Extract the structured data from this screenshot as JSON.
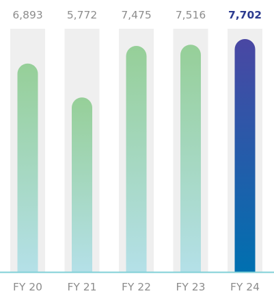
{
  "chart_data": {
    "type": "bar",
    "title": "",
    "xlabel": "",
    "ylabel": "",
    "categories": [
      "FY 20",
      "FY 21",
      "FY 22",
      "FY 23",
      "FY 24"
    ],
    "values": [
      6893,
      5772,
      7475,
      7516,
      7702
    ],
    "value_labels": [
      "6,893",
      "5,772",
      "7,475",
      "7,516",
      "7,702"
    ],
    "highlight_index": 4,
    "ylim": [
      0,
      7702
    ],
    "grid": false,
    "legend": "none"
  },
  "colors": {
    "track": "#efefef",
    "bar_top": "#96cf98",
    "bar_bottom": "#b4e0e8",
    "highlight_top": "#4a47a3",
    "highlight_bottom": "#0070b0",
    "baseline": "#7fcfd6",
    "label": "#8c8c8c",
    "highlight_label": "#2b3a8f"
  }
}
